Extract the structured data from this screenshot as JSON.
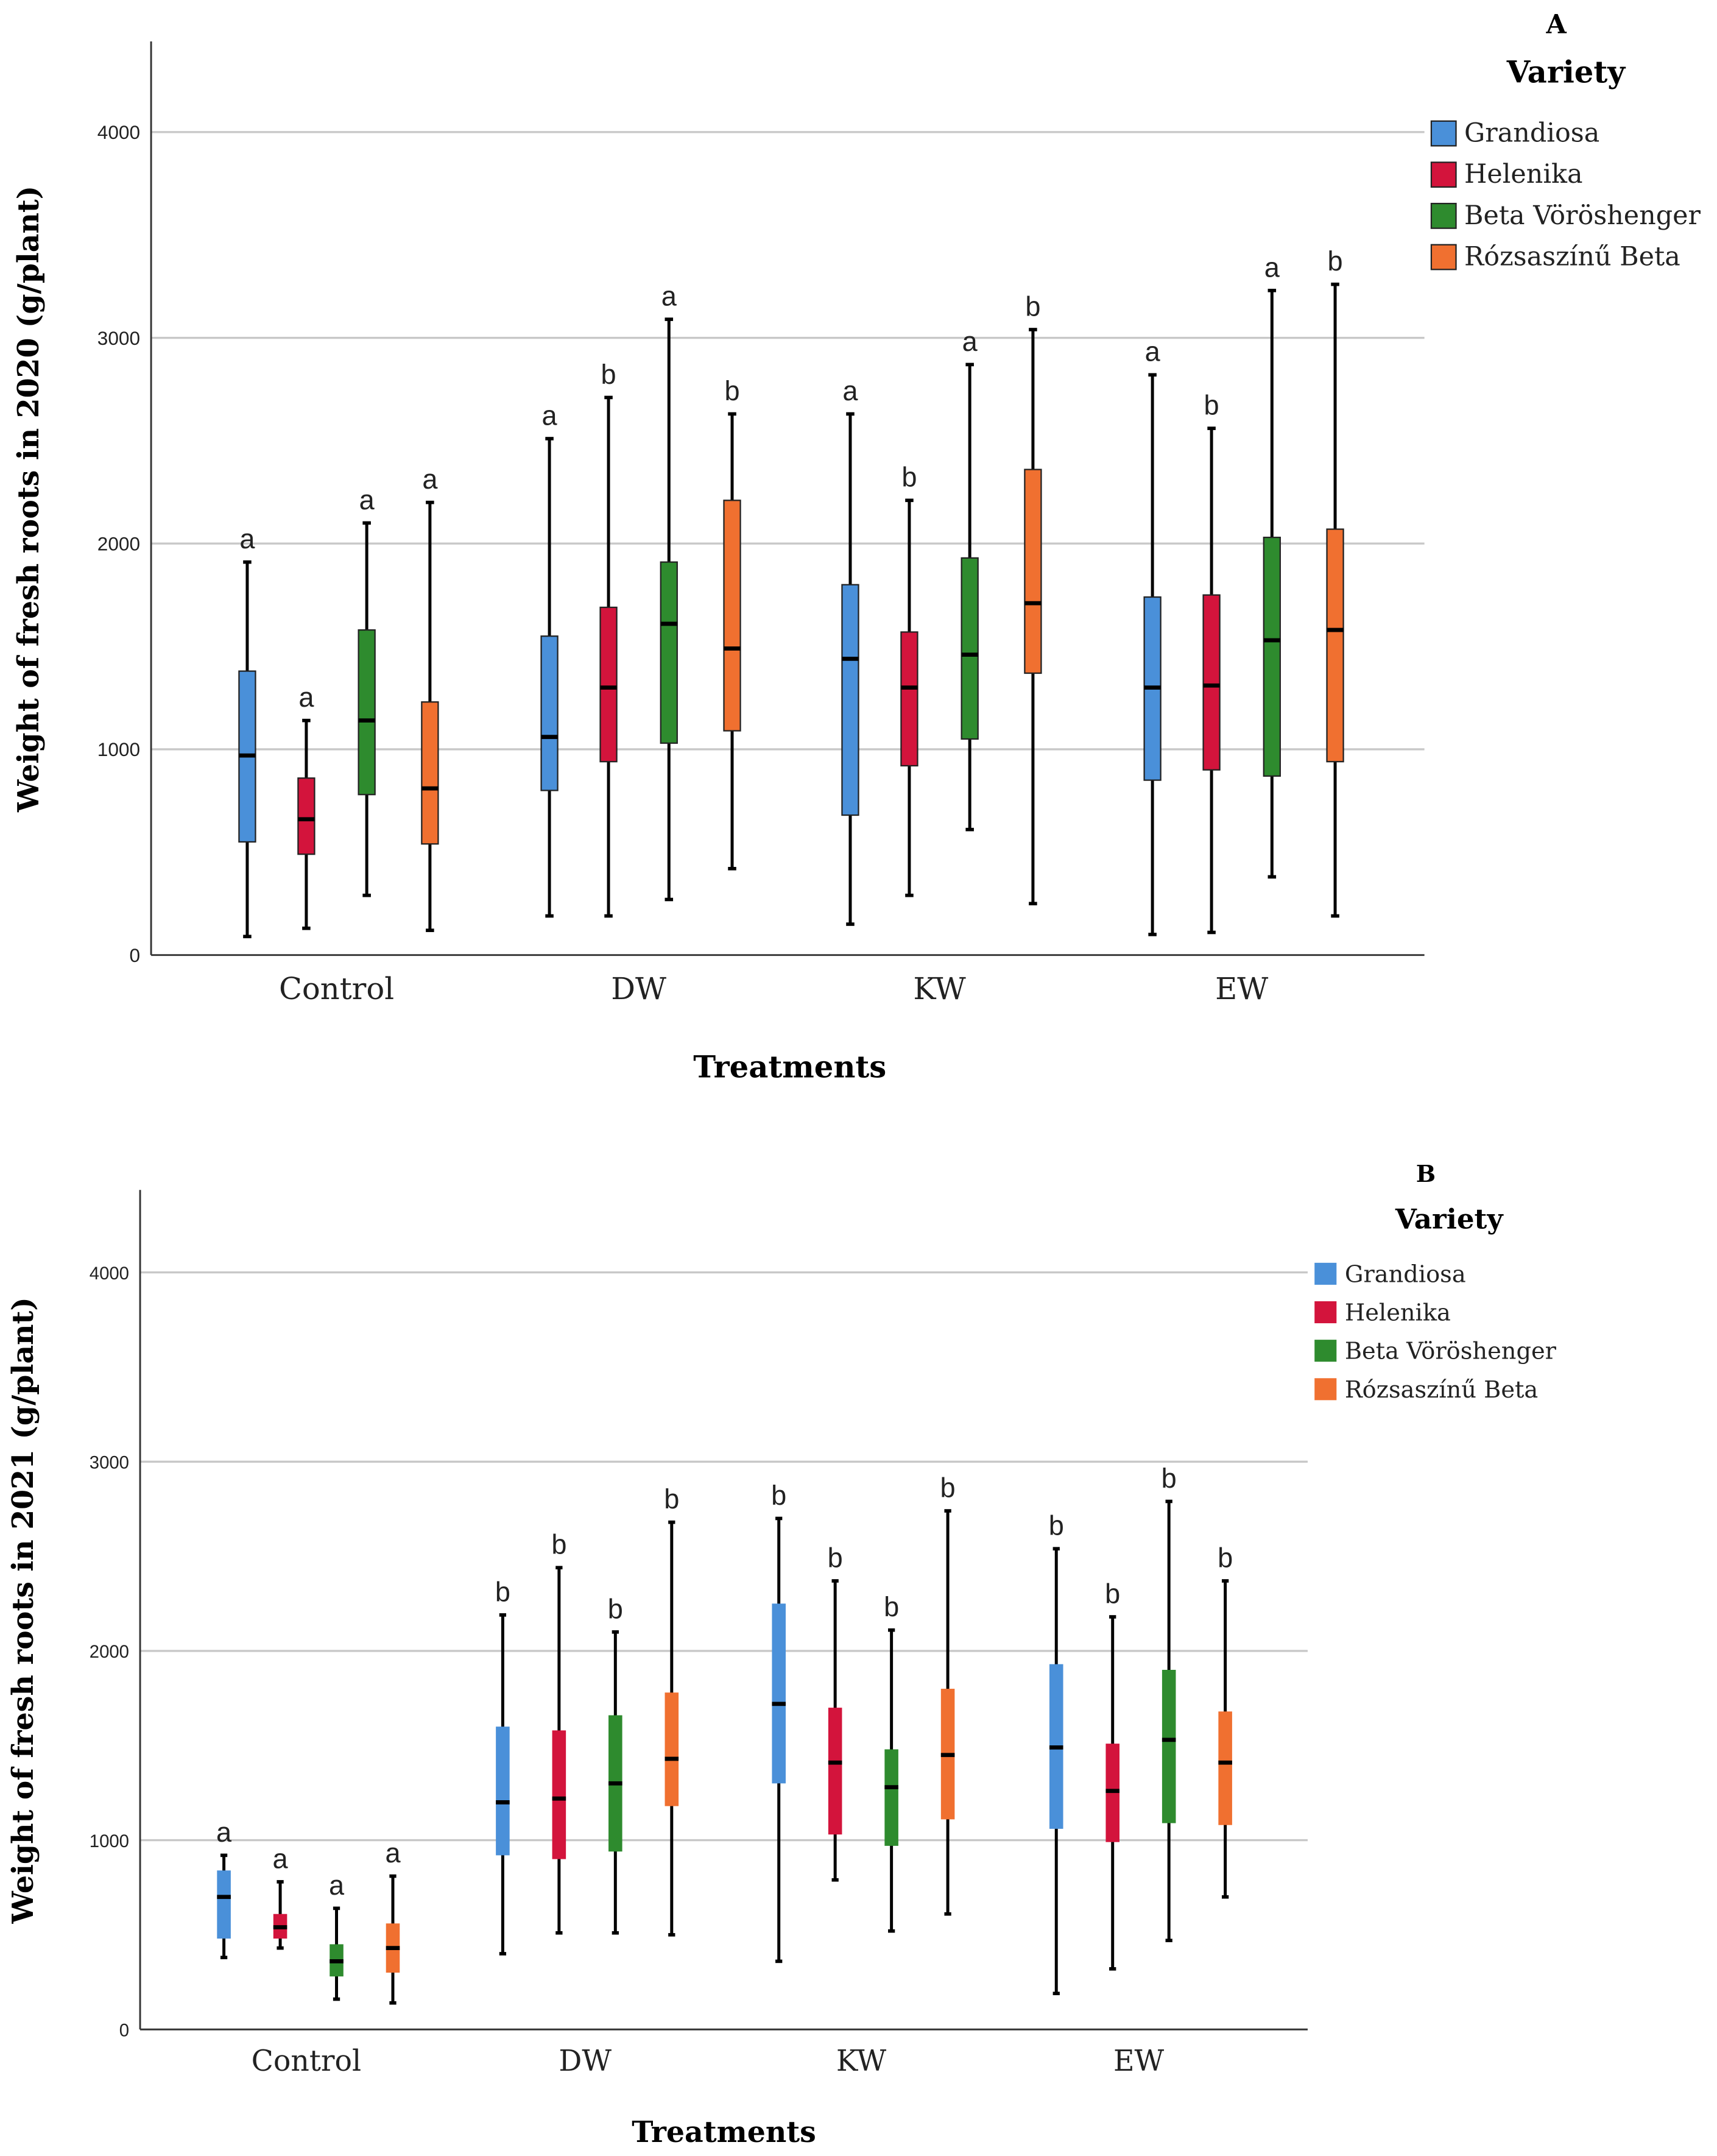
{
  "colors": {
    "Grandiosa": "#4a90d9",
    "Helenika": "#d3143c",
    "Beta Vöröshenger": "#2e8b2e",
    "Rózsaszínű Beta": "#f07030",
    "grid": "#c8c8c8",
    "axis": "#333333"
  },
  "chart_data": [
    {
      "type": "boxplot",
      "panel_label": "A",
      "title": "",
      "xlabel": "Treatments",
      "ylabel": "Weight of fresh roots in 2020 (g/plant)",
      "ylim": [
        0,
        4400
      ],
      "yticks": [
        0,
        1000,
        2000,
        3000,
        4000
      ],
      "grid": true,
      "legend": {
        "title": "Variety",
        "placement": "top-right",
        "entries": [
          "Grandiosa",
          "Helenika",
          "Beta Vöröshenger",
          "Rózsaszínű Beta"
        ]
      },
      "categories": [
        "Control",
        "DW",
        "KW",
        "EW"
      ],
      "series": [
        {
          "name": "Grandiosa",
          "boxes": [
            [
              90,
              550,
              970,
              1380,
              1910
            ],
            [
              190,
              800,
              1060,
              1550,
              2510
            ],
            [
              150,
              680,
              1440,
              1800,
              2630
            ],
            [
              100,
              850,
              1300,
              1740,
              2820
            ]
          ],
          "letters": [
            "a",
            "a",
            "a",
            "a"
          ]
        },
        {
          "name": "Helenika",
          "boxes": [
            [
              130,
              490,
              660,
              860,
              1140
            ],
            [
              190,
              940,
              1300,
              1690,
              2710
            ],
            [
              290,
              920,
              1300,
              1570,
              2210
            ],
            [
              110,
              900,
              1310,
              1750,
              2560
            ]
          ],
          "letters": [
            "a",
            "b",
            "b",
            "b"
          ]
        },
        {
          "name": "Beta Vöröshenger",
          "boxes": [
            [
              290,
              780,
              1140,
              1580,
              2100
            ],
            [
              270,
              1030,
              1610,
              1910,
              3090
            ],
            [
              610,
              1050,
              1460,
              1930,
              2870
            ],
            [
              380,
              870,
              1530,
              2030,
              3230
            ]
          ],
          "letters": [
            "a",
            "a",
            "a",
            "a"
          ]
        },
        {
          "name": "Rózsaszínű Beta",
          "boxes": [
            [
              120,
              540,
              810,
              1230,
              2200
            ],
            [
              420,
              1090,
              1490,
              2210,
              2630
            ],
            [
              250,
              1370,
              1710,
              2360,
              3040
            ],
            [
              190,
              940,
              1580,
              2070,
              3260
            ]
          ],
          "letters": [
            "a",
            "b",
            "b",
            "b"
          ]
        }
      ]
    },
    {
      "type": "boxplot",
      "panel_label": "B",
      "title": "",
      "xlabel": "Treatments",
      "ylabel": "Weight of fresh roots in 2021 (g/plant)",
      "ylim": [
        0,
        4400
      ],
      "yticks": [
        0,
        1000,
        2000,
        3000,
        4000
      ],
      "grid": true,
      "legend": {
        "title": "Variety",
        "placement": "top-right",
        "entries": [
          "Grandiosa",
          "Helenika",
          "Beta Vöröshenger",
          "Rózsaszínű Beta"
        ]
      },
      "categories": [
        "Control",
        "DW",
        "KW",
        "EW"
      ],
      "series": [
        {
          "name": "Grandiosa",
          "boxes": [
            [
              380,
              480,
              700,
              840,
              920
            ],
            [
              400,
              920,
              1200,
              1600,
              2190
            ],
            [
              360,
              1300,
              1720,
              2250,
              2700
            ],
            [
              190,
              1060,
              1490,
              1930,
              2540
            ]
          ],
          "letters": [
            "a",
            "b",
            "b",
            "b"
          ]
        },
        {
          "name": "Helenika",
          "boxes": [
            [
              430,
              480,
              540,
              610,
              780
            ],
            [
              510,
              900,
              1220,
              1580,
              2440
            ],
            [
              790,
              1030,
              1410,
              1700,
              2370
            ],
            [
              320,
              990,
              1260,
              1510,
              2180
            ]
          ],
          "letters": [
            "a",
            "b",
            "b",
            "b"
          ]
        },
        {
          "name": "Beta Vöröshenger",
          "boxes": [
            [
              160,
              280,
              360,
              450,
              640
            ],
            [
              510,
              940,
              1300,
              1660,
              2100
            ],
            [
              520,
              970,
              1280,
              1480,
              2110
            ],
            [
              470,
              1090,
              1530,
              1900,
              2790
            ]
          ],
          "letters": [
            "a",
            "b",
            "b",
            "b"
          ]
        },
        {
          "name": "Rózsaszínű Beta",
          "boxes": [
            [
              140,
              300,
              430,
              560,
              810
            ],
            [
              500,
              1180,
              1430,
              1780,
              2680
            ],
            [
              610,
              1110,
              1450,
              1800,
              2740
            ],
            [
              700,
              1080,
              1410,
              1680,
              2370
            ]
          ],
          "letters": [
            "a",
            "b",
            "b",
            "b"
          ]
        }
      ]
    }
  ]
}
